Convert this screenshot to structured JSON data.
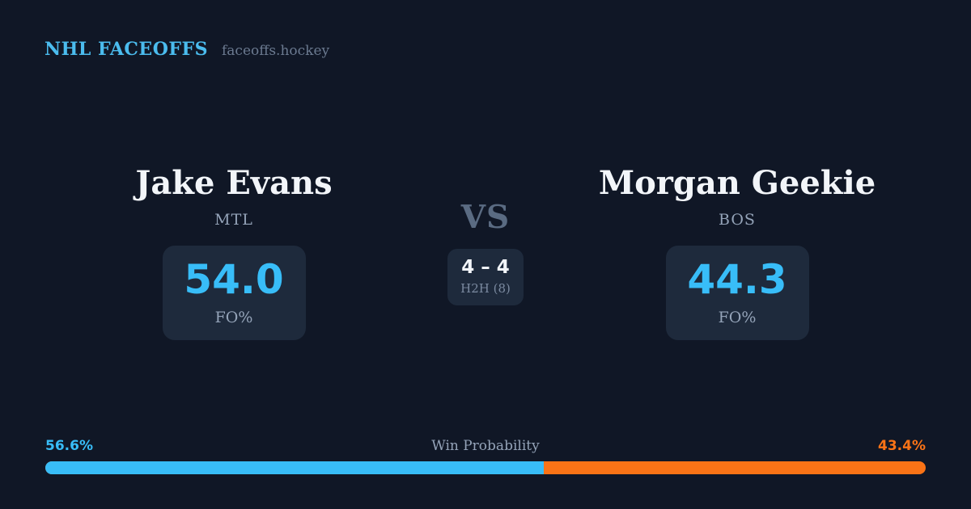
{
  "header": {
    "brand": "NHL FACEOFFS",
    "site": "faceoffs.hockey"
  },
  "matchup": {
    "player1": {
      "name": "Jake Evans",
      "team": "MTL",
      "stat_value": "54.0",
      "stat_label": "FO%"
    },
    "versus": {
      "label": "VS",
      "h2h_score": "4 – 4",
      "h2h_label": "H2H (8)"
    },
    "player2": {
      "name": "Morgan Geekie",
      "team": "BOS",
      "stat_value": "44.3",
      "stat_label": "FO%"
    }
  },
  "win_probability": {
    "title": "Win Probability",
    "player1_pct": "56.6%",
    "player2_pct": "43.4%",
    "player1_value": 56.6,
    "player2_value": 43.4
  },
  "chart_data": {
    "type": "bar",
    "title": "Win Probability",
    "orientation": "horizontal-stacked",
    "categories": [
      "Jake Evans (MTL)",
      "Morgan Geekie (BOS)"
    ],
    "values": [
      56.6,
      43.4
    ],
    "units": "%",
    "series_colors": [
      "#38bdf8",
      "#f97316"
    ],
    "related_stats": {
      "faceoff_pct": {
        "Jake Evans": 54.0,
        "Morgan Geekie": 44.3
      },
      "head_to_head": {
        "score": "4 – 4",
        "sample_size": 8
      }
    }
  },
  "colors": {
    "background": "#101726",
    "card": "#1e2a3c",
    "accent_blue": "#38bdf8",
    "accent_orange": "#f97316",
    "brand_blue": "#4bbcee",
    "text_primary": "#f2f5f9",
    "text_muted": "#94a3b8",
    "vs_gray": "#5a6b82"
  }
}
